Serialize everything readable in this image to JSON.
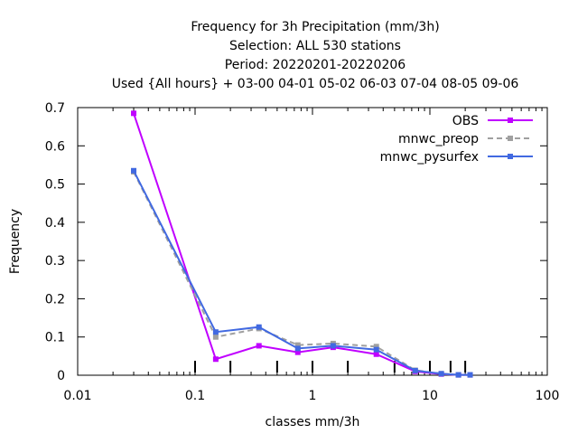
{
  "chart_data": {
    "type": "line",
    "title_lines": [
      "Frequency  for 3h Precipitation (mm/3h)",
      "Selection: ALL    530 stations",
      "Period: 20220201-20220206",
      "Used {All hours} + 03-00 04-01 05-02 06-03 07-04 08-05 09-06"
    ],
    "xlabel": "classes mm/3h",
    "ylabel": "Frequency",
    "xscale": "log",
    "xlim": [
      0.01,
      100
    ],
    "ylim": [
      0,
      0.7
    ],
    "xticks": [
      0.01,
      0.1,
      1,
      10,
      100
    ],
    "xtick_labels": [
      "0.01",
      "0.1",
      "1",
      "10",
      "100"
    ],
    "yticks": [
      0,
      0.1,
      0.2,
      0.3,
      0.4,
      0.5,
      0.6,
      0.7
    ],
    "ytick_labels": [
      "0",
      "0.1",
      "0.2",
      "0.3",
      "0.4",
      "0.5",
      "0.6",
      "0.7"
    ],
    "class_limits": [
      0.1,
      0.2,
      0.5,
      1,
      2,
      5,
      10,
      15,
      20
    ],
    "grid": false,
    "legend_position": "top-right",
    "x": [
      0.03,
      0.15,
      0.35,
      0.75,
      1.5,
      3.5,
      7.5,
      12.5,
      17.5,
      22
    ],
    "series": [
      {
        "name": "OBS",
        "color": "#c000ff",
        "style": "solid",
        "values": [
          0.685,
          0.042,
          0.077,
          0.06,
          0.073,
          0.055,
          0.01,
          0.003,
          0.001,
          0.001
        ]
      },
      {
        "name": "mnwc_preop",
        "color": "#a0a0a0",
        "style": "dashed",
        "values": [
          0.532,
          0.1,
          0.122,
          0.079,
          0.083,
          0.075,
          0.013,
          0.004,
          0.001,
          0.001
        ]
      },
      {
        "name": "mnwc_pysurfex",
        "color": "#4169e1",
        "style": "solid",
        "values": [
          0.535,
          0.113,
          0.126,
          0.07,
          0.077,
          0.067,
          0.012,
          0.004,
          0.001,
          0.001
        ]
      }
    ]
  }
}
